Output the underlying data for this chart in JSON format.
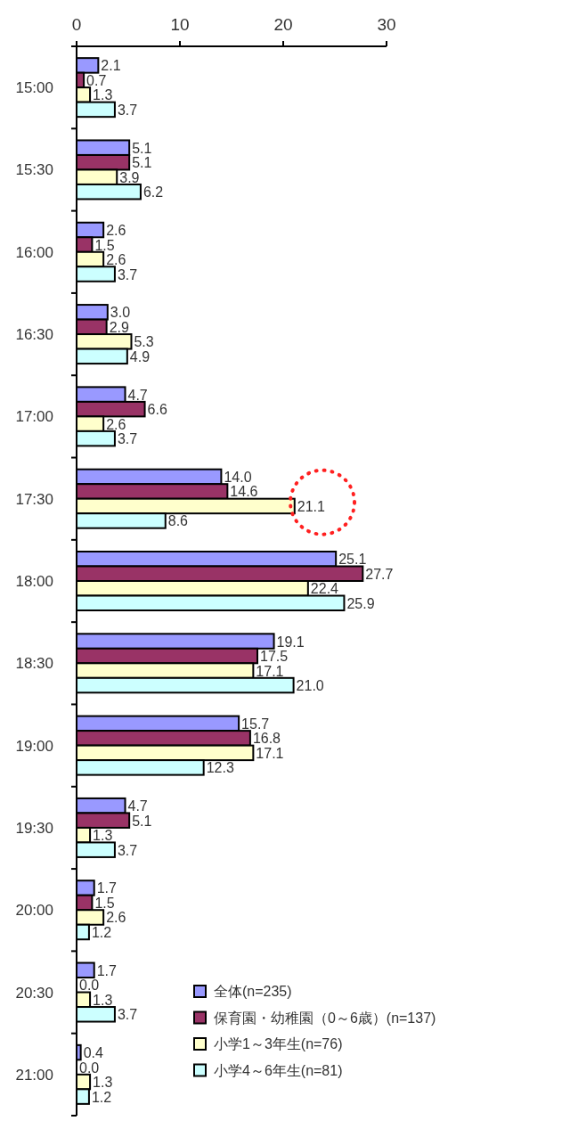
{
  "chart_data": {
    "type": "bar",
    "orientation": "horizontal",
    "categories": [
      "15:00",
      "15:30",
      "16:00",
      "16:30",
      "17:00",
      "17:30",
      "18:00",
      "18:30",
      "19:00",
      "19:30",
      "20:00",
      "20:30",
      "21:00"
    ],
    "series": [
      {
        "name": "全体(n=235)",
        "color": "#9999ff",
        "values": [
          2.1,
          5.1,
          2.6,
          3.0,
          4.7,
          14.0,
          25.1,
          19.1,
          15.7,
          4.7,
          1.7,
          1.7,
          0.4
        ],
        "value_labels": [
          "2.1",
          "5.1",
          "2.6",
          "3.0",
          "4.7",
          "14.0",
          "25.1",
          "19.1",
          "15.7",
          "4.7",
          "1.7",
          "1.7",
          "0.4"
        ]
      },
      {
        "name": "保育園・幼稚園（0～6歳）(n=137)",
        "color": "#993366",
        "values": [
          0.7,
          5.1,
          1.5,
          2.9,
          6.6,
          14.6,
          27.7,
          17.5,
          16.8,
          5.1,
          1.5,
          0.0,
          0.0
        ],
        "value_labels": [
          "0.7",
          "5.1",
          "1.5",
          "2.9",
          "6.6",
          "14.6",
          "27.7",
          "17.5",
          "16.8",
          "5.1",
          "1.5",
          "0.0",
          "0.0"
        ]
      },
      {
        "name": "小学1～3年生(n=76)",
        "color": "#ffffcc",
        "values": [
          1.3,
          3.9,
          2.6,
          5.3,
          2.6,
          21.1,
          22.4,
          17.1,
          17.1,
          1.3,
          2.6,
          1.3,
          1.3
        ],
        "value_labels": [
          "1.3",
          "3.9",
          "2.6",
          "5.3",
          "2.6",
          "21.1",
          "22.4",
          "17.1",
          "17.1",
          "1.3",
          "2.6",
          "1.3",
          "1.3"
        ]
      },
      {
        "name": "小学4～6年生(n=81)",
        "color": "#ccffff",
        "values": [
          3.7,
          6.2,
          3.7,
          4.9,
          3.7,
          8.6,
          25.9,
          21.0,
          12.3,
          3.7,
          1.2,
          3.7,
          1.2
        ],
        "value_labels": [
          "3.7",
          "6.2",
          "3.7",
          "4.9",
          "3.7",
          "8.6",
          "25.9",
          "21.0",
          "12.3",
          "3.7",
          "1.2",
          "3.7",
          "1.2"
        ]
      }
    ],
    "xlim": [
      0,
      30
    ],
    "xticks": [
      0,
      10,
      20,
      30
    ],
    "legend": "bottom right"
  }
}
